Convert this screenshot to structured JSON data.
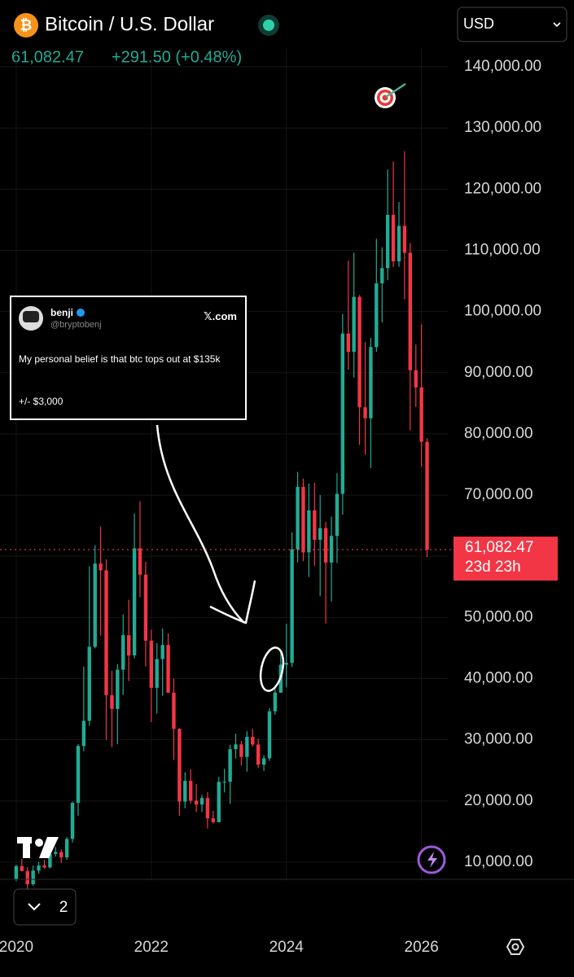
{
  "chart_data": {
    "type": "candlestick",
    "title": "Bitcoin / U.S. Dollar",
    "price": "61,082.47",
    "change": "+291.50 (+0.48%)",
    "currency": "USD",
    "last_price": {
      "value": 61082.47,
      "label": "61,082.47"
    },
    "countdown": "23d 23h",
    "interval_button": "2",
    "up_color": "#22ab94",
    "down_color": "#f23645",
    "grid": true,
    "xlim": [
      2019.76,
      2026.39
    ],
    "xticks": [
      2020,
      2022,
      2024,
      2026
    ],
    "ylim": [
      7000,
      143000
    ],
    "yticks": [
      {
        "value": 10000,
        "label": "10,000.00"
      },
      {
        "value": 20000,
        "label": "20,000.00"
      },
      {
        "value": 30000,
        "label": "30,000.00"
      },
      {
        "value": 40000,
        "label": "40,000.00"
      },
      {
        "value": 50000,
        "label": "50,000.00"
      },
      {
        "value": 60000,
        "label": "60,000.00"
      },
      {
        "value": 70000,
        "label": "70,000.00"
      },
      {
        "value": 80000,
        "label": "80,000.00"
      },
      {
        "value": 90000,
        "label": "90,000.00"
      },
      {
        "value": 100000,
        "label": "100,000.00"
      },
      {
        "value": 110000,
        "label": "110,000.00"
      },
      {
        "value": 120000,
        "label": "120,000.00"
      },
      {
        "value": 130000,
        "label": "130,000.00"
      },
      {
        "value": 140000,
        "label": "140,000.00"
      }
    ],
    "x": [
      2020.0,
      2020.083,
      2020.167,
      2020.25,
      2020.333,
      2020.417,
      2020.5,
      2020.583,
      2020.667,
      2020.75,
      2020.833,
      2020.917,
      2021.0,
      2021.083,
      2021.167,
      2021.25,
      2021.333,
      2021.417,
      2021.5,
      2021.583,
      2021.667,
      2021.75,
      2021.833,
      2021.917,
      2022.0,
      2022.083,
      2022.167,
      2022.25,
      2022.333,
      2022.417,
      2022.5,
      2022.583,
      2022.667,
      2022.75,
      2022.833,
      2022.917,
      2023.0,
      2023.083,
      2023.167,
      2023.25,
      2023.333,
      2023.417,
      2023.5,
      2023.583,
      2023.667,
      2023.75,
      2023.833,
      2023.917,
      2024.0,
      2024.083,
      2024.167,
      2024.25,
      2024.333,
      2024.417,
      2024.5,
      2024.583,
      2024.667,
      2024.75,
      2024.833,
      2024.917,
      2025.0,
      2025.083,
      2025.167,
      2025.25,
      2025.333,
      2025.417,
      2025.5,
      2025.583,
      2025.667,
      2025.75,
      2025.833,
      2025.917,
      2026.0,
      2026.083
    ],
    "open": [
      7200,
      9350,
      8550,
      6400,
      8630,
      9450,
      9140,
      11350,
      11650,
      10780,
      13800,
      19700,
      28990,
      33100,
      45200,
      58800,
      57700,
      37300,
      35040,
      41460,
      47100,
      43800,
      61300,
      57000,
      46200,
      38500,
      43200,
      45500,
      37700,
      31800,
      19900,
      23300,
      20050,
      19420,
      20490,
      17160,
      16540,
      23130,
      23150,
      28470,
      29250,
      27200,
      30470,
      29230,
      25940,
      26970,
      34660,
      37720,
      42280,
      42580,
      61130,
      71330,
      60640,
      67500,
      62700,
      64600,
      58970,
      63330,
      70200,
      96400,
      93400,
      102400,
      84350,
      82550,
      94200,
      104600,
      107100,
      115800,
      108200,
      114000,
      109600,
      90400,
      87600,
      78700
    ],
    "high": [
      9600,
      10500,
      9200,
      9450,
      10070,
      10400,
      11450,
      12470,
      12080,
      14100,
      19900,
      29300,
      41950,
      58350,
      61780,
      64850,
      59500,
      41300,
      42400,
      50500,
      52900,
      67000,
      69000,
      59100,
      48000,
      45800,
      48200,
      47400,
      40000,
      31900,
      24700,
      25200,
      22800,
      21000,
      21450,
      18400,
      23950,
      25250,
      29200,
      31000,
      29800,
      31400,
      31800,
      30200,
      27500,
      35200,
      38400,
      44700,
      48970,
      63900,
      73800,
      72700,
      71900,
      72000,
      70000,
      65600,
      66500,
      73600,
      99600,
      108300,
      109600,
      102700,
      95000,
      95700,
      111900,
      110500,
      123200,
      124500,
      117900,
      126200,
      111200,
      94600,
      97900,
      79300
    ],
    "low": [
      6900,
      8500,
      3800,
      6150,
      8100,
      8900,
      8970,
      10950,
      9900,
      10400,
      13200,
      17600,
      28130,
      32300,
      44950,
      47000,
      30000,
      28800,
      29300,
      37300,
      39600,
      43300,
      53300,
      42000,
      32900,
      34300,
      37200,
      37700,
      26700,
      17600,
      18800,
      19600,
      18150,
      18200,
      15500,
      16300,
      16500,
      21400,
      19550,
      26950,
      25800,
      24800,
      28900,
      25400,
      24900,
      26550,
      34100,
      37650,
      38550,
      41900,
      59000,
      59200,
      56600,
      58400,
      53500,
      49000,
      52600,
      58900,
      66800,
      90500,
      89200,
      78200,
      76600,
      74400,
      93400,
      98200,
      105100,
      107300,
      107300,
      102000,
      80600,
      84400,
      74600,
      59900
    ],
    "close": [
      9350,
      8550,
      6400,
      8630,
      9450,
      9140,
      11350,
      11650,
      10780,
      13800,
      19700,
      28990,
      33100,
      45200,
      58800,
      57700,
      37300,
      35040,
      41460,
      47100,
      43800,
      61300,
      57000,
      46200,
      38500,
      43200,
      45500,
      37700,
      31800,
      19900,
      23300,
      20050,
      19420,
      20490,
      17160,
      16540,
      23130,
      23150,
      28470,
      29250,
      27200,
      30470,
      29230,
      25940,
      26970,
      34660,
      37720,
      42280,
      42580,
      61130,
      71330,
      60640,
      67500,
      62700,
      64600,
      58970,
      63330,
      70200,
      96400,
      93400,
      102400,
      84350,
      82550,
      94200,
      104600,
      107100,
      115800,
      108200,
      114000,
      109600,
      90400,
      87600,
      78700,
      61082.47
    ]
  },
  "tweet": {
    "name": "benji",
    "handle": "@bryptobenj",
    "site": "𝕏.com",
    "text": "My personal belief is that btc tops out at $135k",
    "note": "+/- $3,000"
  }
}
